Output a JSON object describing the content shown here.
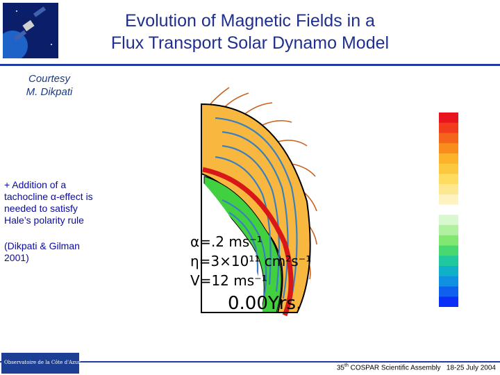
{
  "header": {
    "title_line1": "Evolution of Magnetic Fields  in a",
    "title_line2": "Flux Transport Solar Dynamo Model",
    "logo_icon": "satellite-icon"
  },
  "credit": {
    "line1": "Courtesy",
    "line2": "M. Dikpati"
  },
  "body": {
    "lines": [
      "+ Addition of a",
      "tachocline α-effect is",
      "needed to satisfy",
      "Hale’s polarity rule"
    ],
    "citation_lines": [
      "(Dikpati & Gilman",
      "2001)"
    ]
  },
  "figure": {
    "param_alpha": "α=.2  ms⁻¹",
    "param_eta": "η=3×10¹¹ cm²s⁻¹",
    "param_v": "V=12  ms⁻¹",
    "time": "0.00Yrs.",
    "colorbar_colors": [
      "#e8141e",
      "#f03c1a",
      "#f4641a",
      "#f88c1c",
      "#fbb42a",
      "#fcc83e",
      "#fddc60",
      "#fde890",
      "#fef2c0",
      "#ffffff",
      "#d8f8d0",
      "#b0f0a0",
      "#80e870",
      "#48d870",
      "#20c8a0",
      "#10b0c8",
      "#1090e0",
      "#1060f0",
      "#0a30f8"
    ],
    "field_colors": {
      "positive": "#f8b840",
      "negative": "#40d040",
      "field_line": "#3a80c0",
      "tachocline": "#d81818"
    }
  },
  "footer": {
    "event_prefix": "35",
    "event_sup": "th",
    "event": " COSPAR Scientific Assembly",
    "dates": "18-25 July 2004",
    "obs_logo_text": "Observatoire de la Côte d'Azur"
  }
}
